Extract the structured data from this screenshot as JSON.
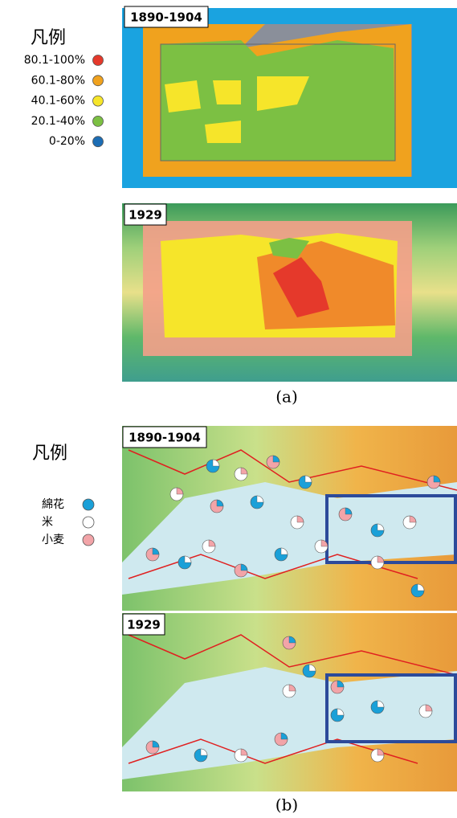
{
  "panel_a": {
    "legend": {
      "title": "凡例",
      "items": [
        {
          "label": "80.1-100%",
          "color": "#e5392b"
        },
        {
          "label": "60.1-80%",
          "color": "#f0a21e"
        },
        {
          "label": "40.1-60%",
          "color": "#f6e52a"
        },
        {
          "label": "20.1-40%",
          "color": "#7cc043"
        },
        {
          "label": "0-20%",
          "color": "#1c6db4"
        }
      ]
    },
    "maps": [
      {
        "label": "1890-1904"
      },
      {
        "label": "1929"
      }
    ],
    "caption": "(a)"
  },
  "panel_b": {
    "legend": {
      "title": "凡例",
      "items": [
        {
          "label": "綿花",
          "color": "#1aa0d8"
        },
        {
          "label": "米",
          "color": "#ffffff"
        },
        {
          "label": "小麦",
          "color": "#f2a4a8"
        }
      ]
    },
    "maps": [
      {
        "label": "1890-1904"
      },
      {
        "label": "1929"
      }
    ],
    "caption": "(b)"
  }
}
